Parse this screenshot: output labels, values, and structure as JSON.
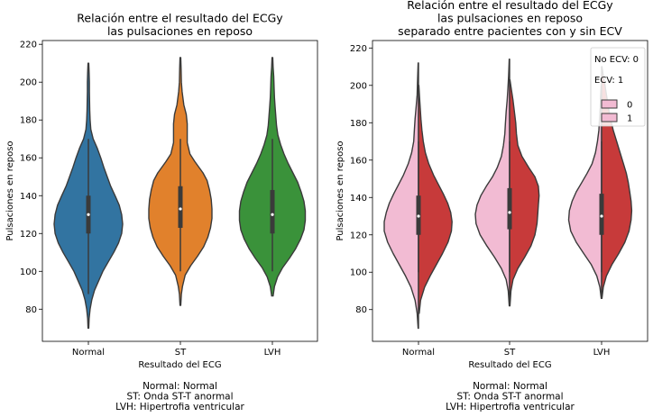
{
  "chart_data": [
    {
      "type": "violin",
      "title": [
        "Relación entre el resultado del ECGy",
        "las pulsaciones en reposo"
      ],
      "xlabel": "Resultado del ECG",
      "ylabel": "Pulsaciones en reposo",
      "ylim": [
        63,
        222
      ],
      "yticks": [
        80,
        100,
        120,
        140,
        160,
        180,
        200,
        220
      ],
      "categories": [
        "Normal",
        "ST",
        "LVH"
      ],
      "footnote": [
        "Normal: Normal",
        "ST: Onda ST-T anormal",
        "LVH: Hipertrofia ventricular"
      ],
      "colors": [
        "#3274a1",
        "#e1812c",
        "#3a923a"
      ],
      "violins": [
        {
          "category": "Normal",
          "min": 70,
          "max": 210,
          "q1": 120,
          "median": 130,
          "q3": 140,
          "whisker_low": 88,
          "whisker_high": 170,
          "profile": [
            [
              70,
              0.01
            ],
            [
              75,
              0.02
            ],
            [
              80,
              0.05
            ],
            [
              85,
              0.1
            ],
            [
              90,
              0.18
            ],
            [
              95,
              0.3
            ],
            [
              100,
              0.42
            ],
            [
              105,
              0.58
            ],
            [
              110,
              0.74
            ],
            [
              115,
              0.88
            ],
            [
              120,
              0.97
            ],
            [
              125,
              1.0
            ],
            [
              130,
              0.97
            ],
            [
              135,
              0.9
            ],
            [
              140,
              0.78
            ],
            [
              145,
              0.65
            ],
            [
              150,
              0.55
            ],
            [
              155,
              0.45
            ],
            [
              160,
              0.36
            ],
            [
              165,
              0.26
            ],
            [
              170,
              0.14
            ],
            [
              175,
              0.07
            ],
            [
              180,
              0.05
            ],
            [
              185,
              0.04
            ],
            [
              190,
              0.035
            ],
            [
              195,
              0.03
            ],
            [
              200,
              0.03
            ],
            [
              205,
              0.02
            ],
            [
              210,
              0.01
            ]
          ]
        },
        {
          "category": "ST",
          "min": 82,
          "max": 213,
          "q1": 123,
          "median": 133,
          "q3": 145,
          "whisker_low": 100,
          "whisker_high": 170,
          "profile": [
            [
              82,
              0.01
            ],
            [
              88,
              0.03
            ],
            [
              92,
              0.06
            ],
            [
              98,
              0.14
            ],
            [
              103,
              0.3
            ],
            [
              108,
              0.5
            ],
            [
              113,
              0.68
            ],
            [
              118,
              0.8
            ],
            [
              123,
              0.88
            ],
            [
              128,
              0.92
            ],
            [
              133,
              0.92
            ],
            [
              138,
              0.9
            ],
            [
              143,
              0.85
            ],
            [
              148,
              0.78
            ],
            [
              152,
              0.66
            ],
            [
              158,
              0.42
            ],
            [
              162,
              0.28
            ],
            [
              168,
              0.2
            ],
            [
              173,
              0.2
            ],
            [
              178,
              0.2
            ],
            [
              183,
              0.17
            ],
            [
              188,
              0.1
            ],
            [
              195,
              0.05
            ],
            [
              200,
              0.03
            ],
            [
              207,
              0.02
            ],
            [
              213,
              0.01
            ]
          ]
        },
        {
          "category": "LVH",
          "min": 87,
          "max": 213,
          "q1": 120,
          "median": 130,
          "q3": 143,
          "whisker_low": 100,
          "whisker_high": 170,
          "profile": [
            [
              87,
              0.02
            ],
            [
              92,
              0.06
            ],
            [
              97,
              0.15
            ],
            [
              102,
              0.3
            ],
            [
              107,
              0.5
            ],
            [
              112,
              0.68
            ],
            [
              117,
              0.82
            ],
            [
              122,
              0.92
            ],
            [
              127,
              0.96
            ],
            [
              132,
              0.96
            ],
            [
              137,
              0.92
            ],
            [
              142,
              0.84
            ],
            [
              147,
              0.74
            ],
            [
              152,
              0.6
            ],
            [
              157,
              0.46
            ],
            [
              162,
              0.34
            ],
            [
              167,
              0.24
            ],
            [
              172,
              0.16
            ],
            [
              177,
              0.12
            ],
            [
              182,
              0.1
            ],
            [
              187,
              0.08
            ],
            [
              192,
              0.06
            ],
            [
              197,
              0.05
            ],
            [
              203,
              0.04
            ],
            [
              208,
              0.02
            ],
            [
              213,
              0.01
            ]
          ]
        }
      ]
    },
    {
      "type": "split_violin",
      "title": [
        "Relación entre el resultado del ECGy",
        "las pulsaciones en reposo",
        "separado entre pacientes con y sin ECV"
      ],
      "xlabel": "Resultado del ECG",
      "ylabel": "Pulsaciones en reposo",
      "ylim": [
        63,
        224
      ],
      "yticks": [
        80,
        100,
        120,
        140,
        160,
        180,
        200,
        220
      ],
      "categories": [
        "Normal",
        "ST",
        "LVH"
      ],
      "footnote": [
        "Normal: Normal",
        "ST: Onda ST-T anormal",
        "LVH: Hipertrofia ventricular"
      ],
      "legend": {
        "position": "top-right",
        "notes": [
          "No ECV: 0",
          "ECV: 1"
        ],
        "entries": [
          {
            "label": "0",
            "color": "#f2bbd3"
          },
          {
            "label": "1",
            "color": "#f2bbd3"
          }
        ]
      },
      "series_colors": {
        "0": "#f2bbd3",
        "1": "#c73a3a"
      },
      "violins": [
        {
          "category": "Normal",
          "q1": 120,
          "median": 130,
          "q3": 141,
          "whisker_low": 100,
          "whisker_high": 170,
          "left": {
            "min": 70,
            "max": 212,
            "profile": [
              [
                70,
                0.01
              ],
              [
                78,
                0.04
              ],
              [
                85,
                0.1
              ],
              [
                92,
                0.22
              ],
              [
                98,
                0.38
              ],
              [
                104,
                0.56
              ],
              [
                110,
                0.74
              ],
              [
                116,
                0.9
              ],
              [
                122,
                1.0
              ],
              [
                127,
                1.0
              ],
              [
                132,
                0.94
              ],
              [
                137,
                0.85
              ],
              [
                142,
                0.72
              ],
              [
                147,
                0.58
              ],
              [
                152,
                0.44
              ],
              [
                158,
                0.3
              ],
              [
                164,
                0.2
              ],
              [
                170,
                0.14
              ],
              [
                176,
                0.12
              ],
              [
                182,
                0.1
              ],
              [
                188,
                0.07
              ],
              [
                195,
                0.04
              ],
              [
                202,
                0.03
              ],
              [
                212,
                0.01
              ]
            ]
          },
          "right": {
            "min": 78,
            "max": 200,
            "profile": [
              [
                78,
                0.02
              ],
              [
                85,
                0.06
              ],
              [
                92,
                0.18
              ],
              [
                98,
                0.34
              ],
              [
                104,
                0.52
              ],
              [
                110,
                0.7
              ],
              [
                116,
                0.86
              ],
              [
                122,
                0.96
              ],
              [
                127,
                0.98
              ],
              [
                132,
                0.94
              ],
              [
                137,
                0.85
              ],
              [
                142,
                0.72
              ],
              [
                147,
                0.58
              ],
              [
                152,
                0.44
              ],
              [
                158,
                0.3
              ],
              [
                164,
                0.2
              ],
              [
                170,
                0.14
              ],
              [
                176,
                0.1
              ],
              [
                182,
                0.07
              ],
              [
                188,
                0.05
              ],
              [
                194,
                0.03
              ],
              [
                200,
                0.01
              ]
            ]
          }
        },
        {
          "category": "ST",
          "q1": 123,
          "median": 132,
          "q3": 145,
          "whisker_low": 100,
          "whisker_high": 170,
          "left": {
            "min": 82,
            "max": 214,
            "profile": [
              [
                82,
                0.01
              ],
              [
                90,
                0.04
              ],
              [
                96,
                0.1
              ],
              [
                102,
                0.24
              ],
              [
                108,
                0.44
              ],
              [
                114,
                0.66
              ],
              [
                120,
                0.86
              ],
              [
                126,
                0.98
              ],
              [
                131,
                1.0
              ],
              [
                136,
                0.95
              ],
              [
                141,
                0.84
              ],
              [
                146,
                0.68
              ],
              [
                151,
                0.5
              ],
              [
                156,
                0.36
              ],
              [
                162,
                0.24
              ],
              [
                168,
                0.18
              ],
              [
                174,
                0.14
              ],
              [
                180,
                0.12
              ],
              [
                186,
                0.1
              ],
              [
                192,
                0.07
              ],
              [
                198,
                0.05
              ],
              [
                205,
                0.03
              ],
              [
                214,
                0.01
              ]
            ]
          },
          "right": {
            "min": 82,
            "max": 203,
            "profile": [
              [
                82,
                0.01
              ],
              [
                90,
                0.04
              ],
              [
                96,
                0.1
              ],
              [
                102,
                0.24
              ],
              [
                108,
                0.44
              ],
              [
                114,
                0.62
              ],
              [
                120,
                0.74
              ],
              [
                126,
                0.8
              ],
              [
                131,
                0.82
              ],
              [
                136,
                0.84
              ],
              [
                141,
                0.86
              ],
              [
                146,
                0.84
              ],
              [
                151,
                0.74
              ],
              [
                156,
                0.56
              ],
              [
                162,
                0.36
              ],
              [
                168,
                0.24
              ],
              [
                174,
                0.2
              ],
              [
                180,
                0.18
              ],
              [
                186,
                0.14
              ],
              [
                192,
                0.1
              ],
              [
                198,
                0.05
              ],
              [
                203,
                0.01
              ]
            ]
          }
        },
        {
          "category": "LVH",
          "q1": 120,
          "median": 130,
          "q3": 142,
          "whisker_low": 100,
          "whisker_high": 170,
          "left": {
            "min": 86,
            "max": 200,
            "profile": [
              [
                86,
                0.01
              ],
              [
                92,
                0.05
              ],
              [
                98,
                0.14
              ],
              [
                104,
                0.3
              ],
              [
                110,
                0.52
              ],
              [
                116,
                0.74
              ],
              [
                122,
                0.9
              ],
              [
                128,
                0.96
              ],
              [
                133,
                0.94
              ],
              [
                138,
                0.86
              ],
              [
                143,
                0.74
              ],
              [
                148,
                0.58
              ],
              [
                153,
                0.42
              ],
              [
                158,
                0.28
              ],
              [
                164,
                0.18
              ],
              [
                170,
                0.12
              ],
              [
                176,
                0.08
              ],
              [
                182,
                0.06
              ],
              [
                188,
                0.04
              ],
              [
                194,
                0.03
              ],
              [
                200,
                0.01
              ]
            ]
          },
          "right": {
            "min": 86,
            "max": 210,
            "profile": [
              [
                86,
                0.01
              ],
              [
                92,
                0.05
              ],
              [
                98,
                0.14
              ],
              [
                104,
                0.3
              ],
              [
                110,
                0.5
              ],
              [
                116,
                0.68
              ],
              [
                122,
                0.8
              ],
              [
                128,
                0.86
              ],
              [
                133,
                0.88
              ],
              [
                138,
                0.86
              ],
              [
                143,
                0.82
              ],
              [
                148,
                0.78
              ],
              [
                153,
                0.72
              ],
              [
                158,
                0.64
              ],
              [
                164,
                0.54
              ],
              [
                170,
                0.44
              ],
              [
                176,
                0.34
              ],
              [
                182,
                0.26
              ],
              [
                188,
                0.2
              ],
              [
                194,
                0.15
              ],
              [
                200,
                0.1
              ],
              [
                205,
                0.05
              ],
              [
                210,
                0.01
              ]
            ]
          }
        }
      ]
    }
  ]
}
